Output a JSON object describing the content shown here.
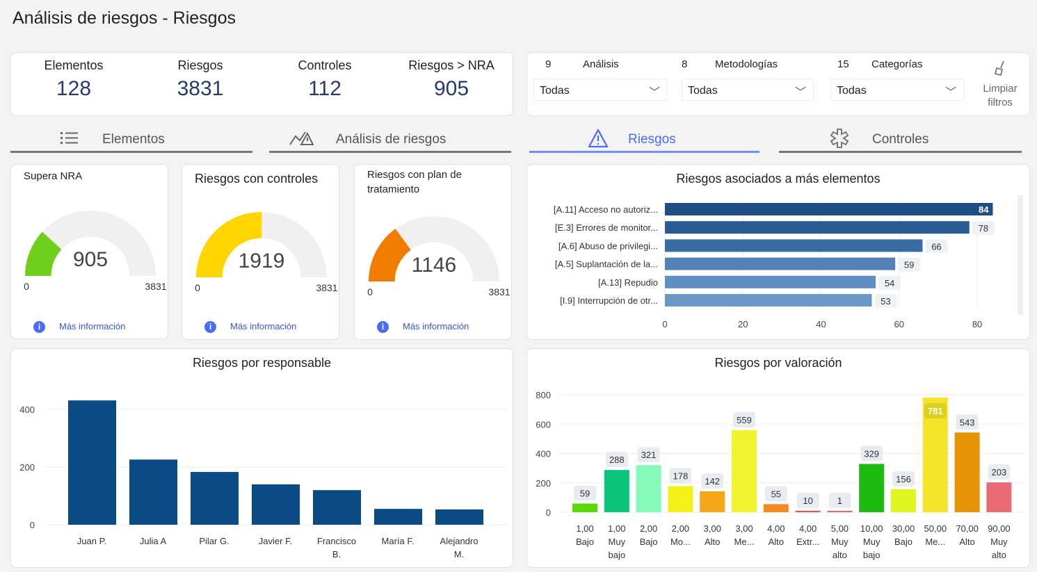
{
  "title": "Análisis de riesgos - Riesgos",
  "kpis": [
    {
      "label": "Elementos",
      "value": "128"
    },
    {
      "label": "Riesgos",
      "value": "3831"
    },
    {
      "label": "Controles",
      "value": "112"
    },
    {
      "label": "Riesgos > NRA",
      "value": "905"
    }
  ],
  "filters": [
    {
      "count": "9",
      "label": "Análisis",
      "value": "Todas"
    },
    {
      "count": "8",
      "label": "Metodologías",
      "value": "Todas"
    },
    {
      "count": "15",
      "label": "Categorías",
      "value": "Todas"
    }
  ],
  "clear_filters": "Limpiar filtros",
  "tabs": [
    {
      "label": "Elementos",
      "icon": "list-icon"
    },
    {
      "label": "Análisis de riesgos",
      "icon": "risk-analysis-icon"
    },
    {
      "label": "Riesgos",
      "icon": "warning-icon",
      "active": true
    },
    {
      "label": "Controles",
      "icon": "controls-icon"
    }
  ],
  "more_info": "Más información",
  "gauges": [
    {
      "title": "Supera NRA",
      "value": 905,
      "min": 0,
      "max": 3831,
      "color": "#6fcf1c"
    },
    {
      "title": "Riesgos con controles",
      "value": 1919,
      "min": 0,
      "max": 3831,
      "color": "#ffd500"
    },
    {
      "title": "Riesgos con plan de tratamiento",
      "value": 1146,
      "min": 0,
      "max": 3831,
      "color": "#f07d00"
    }
  ],
  "chart_data": [
    {
      "type": "bar",
      "orientation": "horizontal",
      "title": "Riesgos asociados a más elementos",
      "categories": [
        "[A.11] Acceso no autoriz...",
        "[E.3] Errores de monitor...",
        "[A.6] Abuso de privilegi...",
        "[A.5] Suplantación de la...",
        "[A.13] Repudio",
        "[I.9] Interrupción de otr..."
      ],
      "values": [
        84,
        78,
        66,
        59,
        54,
        53
      ],
      "xlim": [
        0,
        80
      ],
      "xticks": [
        0,
        20,
        40,
        60,
        80
      ],
      "colors": [
        "#1f4e86",
        "#2a5b93",
        "#3b6ba3",
        "#5282b8",
        "#5f8fc2",
        "#6a97c5"
      ]
    },
    {
      "type": "bar",
      "title": "Riesgos por responsable",
      "categories": [
        "Juan P.",
        "Julia A",
        "Pilar G.",
        "Javier F.",
        "Francisco B.",
        "María F.",
        "Alejandro M."
      ],
      "values": [
        431,
        226,
        183,
        140,
        120,
        55,
        53
      ],
      "ylim": [
        0,
        400
      ],
      "yticks": [
        0,
        200,
        400
      ],
      "color": "#0a4a85",
      "grid": true
    },
    {
      "type": "bar",
      "title": "Riesgos por valoración",
      "categories": [
        [
          "1,00",
          "Bajo"
        ],
        [
          "1,00",
          "Muy",
          "bajo"
        ],
        [
          "2,00",
          "Bajo"
        ],
        [
          "2,00",
          "Mo..."
        ],
        [
          "3,00",
          "Alto"
        ],
        [
          "3,00",
          "Me..."
        ],
        [
          "4,00",
          "Alto"
        ],
        [
          "4,00",
          "Extr..."
        ],
        [
          "5,00",
          "Muy",
          "alto"
        ],
        [
          "10,00",
          "Muy",
          "bajo"
        ],
        [
          "30,00",
          "Bajo"
        ],
        [
          "50,00",
          "Me..."
        ],
        [
          "70,00",
          "Alto"
        ],
        [
          "90,00",
          "Muy",
          "alto"
        ]
      ],
      "values": [
        59,
        288,
        321,
        178,
        142,
        559,
        55,
        10,
        1,
        329,
        156,
        781,
        543,
        203
      ],
      "colors": [
        "#5bd80a",
        "#0ac47a",
        "#84f9b8",
        "#f4f01a",
        "#f5a516",
        "#f0f32e",
        "#f58b1e",
        "#f05050",
        "#f06060",
        "#1fba0f",
        "#def51e",
        "#f5e22a",
        "#e59207",
        "#e76c75"
      ],
      "ylim": [
        0,
        800
      ],
      "yticks": [
        0,
        200,
        400,
        600,
        800
      ],
      "grid": true
    }
  ]
}
